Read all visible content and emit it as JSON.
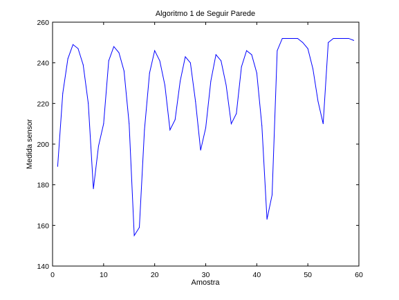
{
  "chart_data": {
    "type": "line",
    "title": "Algoritmo 1 de Seguir Parede",
    "xlabel": "Amostra",
    "ylabel": "Medida sensor",
    "xlim": [
      0,
      60
    ],
    "ylim": [
      140,
      260
    ],
    "x_ticks": [
      0,
      10,
      20,
      30,
      40,
      50,
      60
    ],
    "y_ticks": [
      140,
      160,
      180,
      200,
      220,
      240,
      260
    ],
    "grid": false,
    "series": [
      {
        "color": "#0000ff",
        "x": [
          1,
          2,
          3,
          4,
          5,
          6,
          7,
          8,
          9,
          10,
          11,
          12,
          13,
          14,
          15,
          16,
          17,
          18,
          19,
          20,
          21,
          22,
          23,
          24,
          25,
          26,
          27,
          28,
          29,
          30,
          31,
          32,
          33,
          34,
          35,
          36,
          37,
          38,
          39,
          40,
          41,
          42,
          43,
          44,
          45,
          46,
          47,
          48,
          49,
          50,
          51,
          52,
          53,
          54,
          55,
          56,
          57,
          58,
          59
        ],
        "values": [
          189,
          225,
          242,
          249,
          247,
          239,
          220,
          178,
          199,
          210,
          241,
          248,
          245,
          236,
          210,
          155,
          159,
          207,
          235,
          246,
          241,
          229,
          207,
          212,
          231,
          243,
          240,
          221,
          197,
          208,
          231,
          244,
          241,
          229,
          210,
          215,
          238,
          246,
          244,
          235,
          209,
          163,
          175,
          246,
          252,
          252,
          252,
          252,
          250,
          247,
          237,
          221,
          210,
          250,
          252,
          252,
          252,
          252,
          251
        ]
      }
    ]
  }
}
